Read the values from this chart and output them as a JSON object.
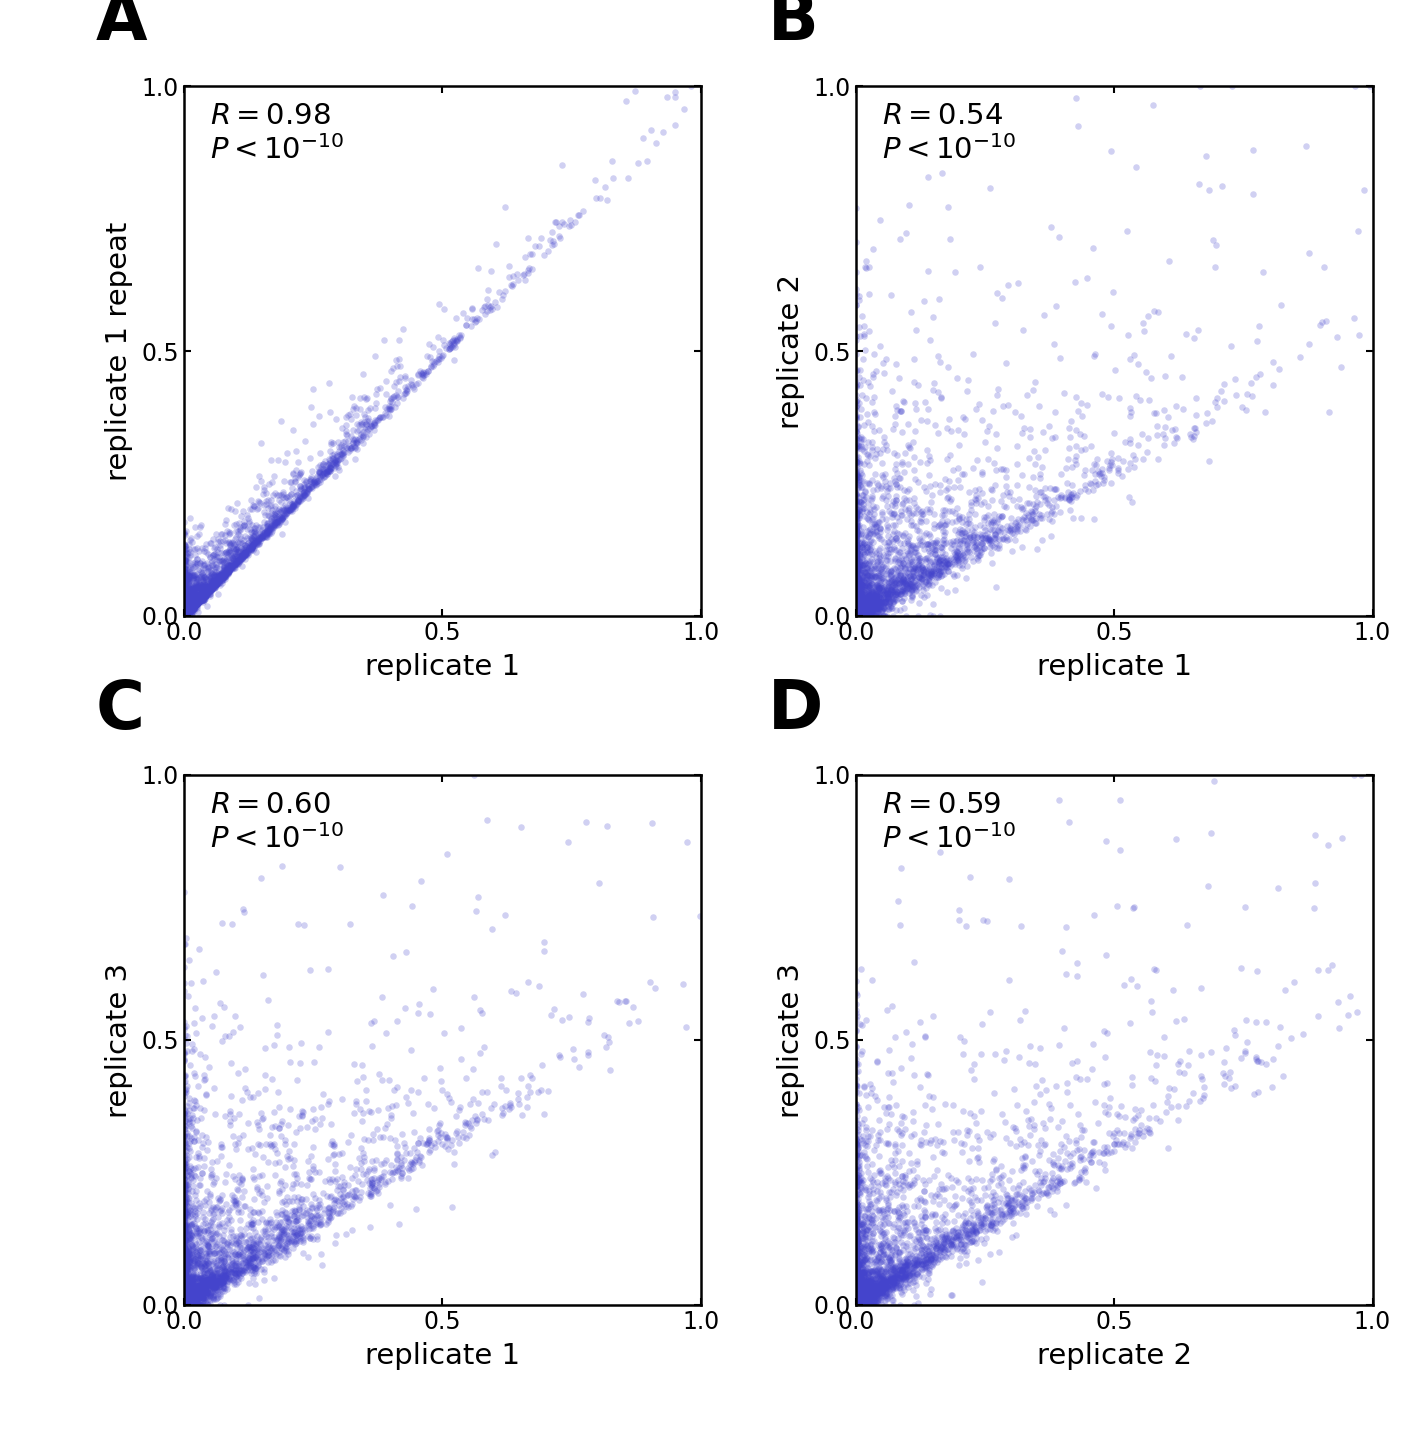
{
  "panels": [
    {
      "label": "A",
      "xlabel": "replicate 1",
      "ylabel": "replicate 1 repeat",
      "R": "0.98",
      "correlation": 0.98,
      "n_dense": 3000,
      "n_sparse": 500,
      "beta_a": 0.3,
      "beta_b": 3.0
    },
    {
      "label": "B",
      "xlabel": "replicate 1",
      "ylabel": "replicate 2",
      "R": "0.54",
      "correlation": 0.54,
      "n_dense": 3000,
      "n_sparse": 500,
      "beta_a": 0.3,
      "beta_b": 3.0
    },
    {
      "label": "C",
      "xlabel": "replicate 1",
      "ylabel": "replicate 3",
      "R": "0.60",
      "correlation": 0.6,
      "n_dense": 3000,
      "n_sparse": 500,
      "beta_a": 0.3,
      "beta_b": 3.0
    },
    {
      "label": "D",
      "xlabel": "replicate 2",
      "ylabel": "replicate 3",
      "R": "0.59",
      "correlation": 0.59,
      "n_dense": 3000,
      "n_sparse": 500,
      "beta_a": 0.3,
      "beta_b": 3.0
    }
  ],
  "dot_color": "#4444cc",
  "dot_alpha": 0.25,
  "dot_size": 22,
  "tick_fontsize": 17,
  "axis_label_fontsize": 21,
  "annotation_fontsize": 21,
  "panel_label_fontsize": 48,
  "xlim": [
    0.0,
    1.0
  ],
  "ylim": [
    0.0,
    1.0
  ],
  "xticks": [
    0.0,
    0.5,
    1.0
  ],
  "yticks": [
    0.0,
    0.5,
    1.0
  ]
}
